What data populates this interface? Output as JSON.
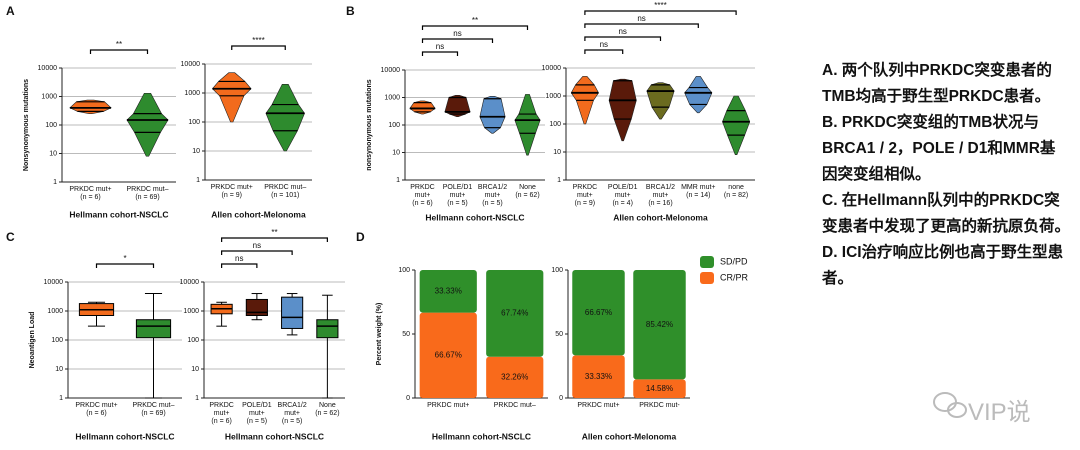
{
  "chart_data": [
    {
      "panel": "A",
      "type": "violin",
      "ylabel": "Nonsynonymous mutations",
      "xlabel": "Hellmann cohort-NSCLC",
      "categories": [
        "PRKDC mut+",
        "PRKDC mut–"
      ],
      "n_labels": [
        "(n = 6)",
        "(n = 69)"
      ],
      "colors": [
        "#f26b1d",
        "#2e8b2e"
      ],
      "min": [
        250,
        8
      ],
      "q1": [
        300,
        55
      ],
      "median": [
        400,
        150
      ],
      "q3": [
        650,
        250
      ],
      "max": [
        750,
        1300
      ],
      "ylim": [
        1,
        10000
      ],
      "yticks": [
        1,
        10,
        100,
        1000,
        10000
      ],
      "log_scale": true,
      "grid": true,
      "comparisons": [
        {
          "from": 0,
          "to": 1,
          "label": "**"
        }
      ]
    },
    {
      "type": "violin",
      "xlabel": "Allen cohort-Melonoma",
      "categories": [
        "PRKDC mut+",
        "PRKDC mut–"
      ],
      "n_labels": [
        "(n = 9)",
        "(n = 101)"
      ],
      "colors": [
        "#f26b1d",
        "#2e8b2e"
      ],
      "min": [
        100,
        10
      ],
      "q1": [
        800,
        50
      ],
      "median": [
        1400,
        200
      ],
      "q3": [
        2500,
        400
      ],
      "max": [
        5000,
        2000
      ],
      "ylim": [
        1,
        10000
      ],
      "yticks": [
        1,
        10,
        100,
        1000,
        10000
      ],
      "log_scale": true,
      "grid": true,
      "comparisons": [
        {
          "from": 0,
          "to": 1,
          "label": "****"
        }
      ]
    },
    {
      "panel": "B",
      "type": "violin",
      "ylabel": "nonsynonymous mutations",
      "xlabel": "Hellmann cohort-NSCLC",
      "categories": [
        "PRKDC mut+",
        "POLE/D1 mut+",
        "BRCA1/2 mut+",
        "None"
      ],
      "n_labels": [
        "(n = 6)",
        "(n = 5)",
        "(n = 5)",
        "(n = 62)"
      ],
      "colors": [
        "#f26b1d",
        "#5a1a0a",
        "#5b8fc9",
        "#2e8b2e"
      ],
      "min": [
        250,
        200,
        50,
        8
      ],
      "q1": [
        300,
        250,
        80,
        50
      ],
      "median": [
        400,
        300,
        200,
        150
      ],
      "q3": [
        650,
        1000,
        900,
        250
      ],
      "max": [
        750,
        1200,
        1100,
        1300
      ],
      "ylim": [
        1,
        10000
      ],
      "yticks": [
        1,
        10,
        100,
        1000,
        10000
      ],
      "log_scale": true,
      "grid": true,
      "comparisons": [
        {
          "from": 0,
          "to": 3,
          "label": "**"
        },
        {
          "from": 0,
          "to": 2,
          "label": "ns"
        },
        {
          "from": 0,
          "to": 1,
          "label": "ns"
        }
      ]
    },
    {
      "type": "violin",
      "xlabel": "Allen cohort-Melonoma",
      "categories": [
        "PRKDC mut+",
        "POLE/D1 mut+",
        "BRCA1/2 mut+",
        "MMR mut+",
        "none"
      ],
      "n_labels": [
        "(n = 9)",
        "(n = 4)",
        "(n = 16)",
        "(n = 14)",
        "(n = 82)"
      ],
      "colors": [
        "#f26b1d",
        "#5a1a0a",
        "#6b6b1f",
        "#5b8fc9",
        "#2e8b2e"
      ],
      "min": [
        100,
        25,
        150,
        250,
        8
      ],
      "q1": [
        700,
        150,
        400,
        500,
        40
      ],
      "median": [
        1300,
        700,
        1500,
        1300,
        120
      ],
      "q3": [
        2500,
        3500,
        2500,
        2000,
        300
      ],
      "max": [
        5000,
        4000,
        3000,
        5000,
        1000
      ],
      "ylim": [
        1,
        10000
      ],
      "yticks": [
        1,
        10,
        100,
        1000,
        10000
      ],
      "log_scale": true,
      "grid": true,
      "comparisons": [
        {
          "from": 0,
          "to": 4,
          "label": "****"
        },
        {
          "from": 0,
          "to": 3,
          "label": "ns"
        },
        {
          "from": 0,
          "to": 2,
          "label": "ns"
        },
        {
          "from": 0,
          "to": 1,
          "label": "ns"
        }
      ]
    },
    {
      "panel": "C",
      "type": "box",
      "ylabel": "Neoantigen Load",
      "xlabel": "Hellmann cohort-NSCLC",
      "categories": [
        "PRKDC mut+",
        "PRKDC mut–"
      ],
      "n_labels": [
        "(n = 6)",
        "(n = 69)"
      ],
      "colors": [
        "#f26b1d",
        "#2e8b2e"
      ],
      "min": [
        300,
        1
      ],
      "q1": [
        700,
        120
      ],
      "median": [
        1100,
        300
      ],
      "q3": [
        1800,
        500
      ],
      "max": [
        2000,
        4000
      ],
      "ylim": [
        1,
        10000
      ],
      "yticks": [
        1,
        10,
        100,
        1000,
        10000
      ],
      "log_scale": true,
      "grid": true,
      "comparisons": [
        {
          "from": 0,
          "to": 1,
          "label": "*"
        }
      ]
    },
    {
      "type": "box",
      "xlabel": "Hellmann cohort-NSCLC",
      "categories": [
        "PRKDC mut+",
        "POLE/D1 mut+",
        "BRCA1/2 mut+",
        "None"
      ],
      "n_labels": [
        "(n = 6)",
        "(n = 5)",
        "(n = 5)",
        "(n = 62)"
      ],
      "colors": [
        "#f26b1d",
        "#5a1a0a",
        "#5b8fc9",
        "#2e8b2e"
      ],
      "min": [
        300,
        500,
        150,
        1
      ],
      "q1": [
        800,
        700,
        250,
        120
      ],
      "median": [
        1200,
        900,
        600,
        300
      ],
      "q3": [
        1700,
        2500,
        3000,
        500
      ],
      "max": [
        2000,
        4000,
        4000,
        3500
      ],
      "ylim": [
        1,
        10000
      ],
      "yticks": [
        1,
        10,
        100,
        1000,
        10000
      ],
      "log_scale": true,
      "grid": true,
      "comparisons": [
        {
          "from": 0,
          "to": 3,
          "label": "**"
        },
        {
          "from": 0,
          "to": 2,
          "label": "ns"
        },
        {
          "from": 0,
          "to": 1,
          "label": "ns"
        }
      ]
    },
    {
      "panel": "D",
      "type": "stacked_bar",
      "ylabel": "Percent weight (%)",
      "xlabel": "Hellmann cohort-NSCLC",
      "categories": [
        "PRKDC mut+",
        "PRKDC mut–"
      ],
      "series": [
        {
          "name": "CR/PR",
          "color": "#f96a1b",
          "values": [
            66.67,
            32.26
          ],
          "value_labels": [
            "66.67%",
            "32.26%"
          ]
        },
        {
          "name": "SD/PD",
          "color": "#2f8f2a",
          "values": [
            33.33,
            67.74
          ],
          "value_labels": [
            "33.33%",
            "67.74%"
          ]
        }
      ],
      "ylim": [
        0,
        100
      ],
      "yticks": [
        0,
        50,
        100
      ]
    },
    {
      "type": "stacked_bar",
      "xlabel": "Allen cohort-Melonoma",
      "categories": [
        "PRKDC mut+",
        "PRKDC mut-"
      ],
      "series": [
        {
          "name": "CR/PR",
          "color": "#f96a1b",
          "values": [
            33.33,
            14.58
          ],
          "value_labels": [
            "33.33%",
            "14.58%"
          ]
        },
        {
          "name": "SD/PD",
          "color": "#2f8f2a",
          "values": [
            66.67,
            85.42
          ],
          "value_labels": [
            "66.67%",
            "85.42%"
          ]
        }
      ],
      "ylim": [
        0,
        100
      ],
      "yticks": [
        0,
        50,
        100
      ],
      "legend": "right"
    }
  ],
  "notes": [
    "A. 两个队列中PRKDC突变患者的TMB均高于野生型PRKDC患者。",
    "B. PRKDC突变组的TMB状况与BRCA1 / 2，POLE / D1和MMR基因突变组相似。",
    "C. 在Hellmann队列中的PRKDC突变患者中发现了更高的新抗原负荷。",
    "D. ICI治疗响应比例也高于野生型患者。"
  ],
  "watermark": "VIP说"
}
